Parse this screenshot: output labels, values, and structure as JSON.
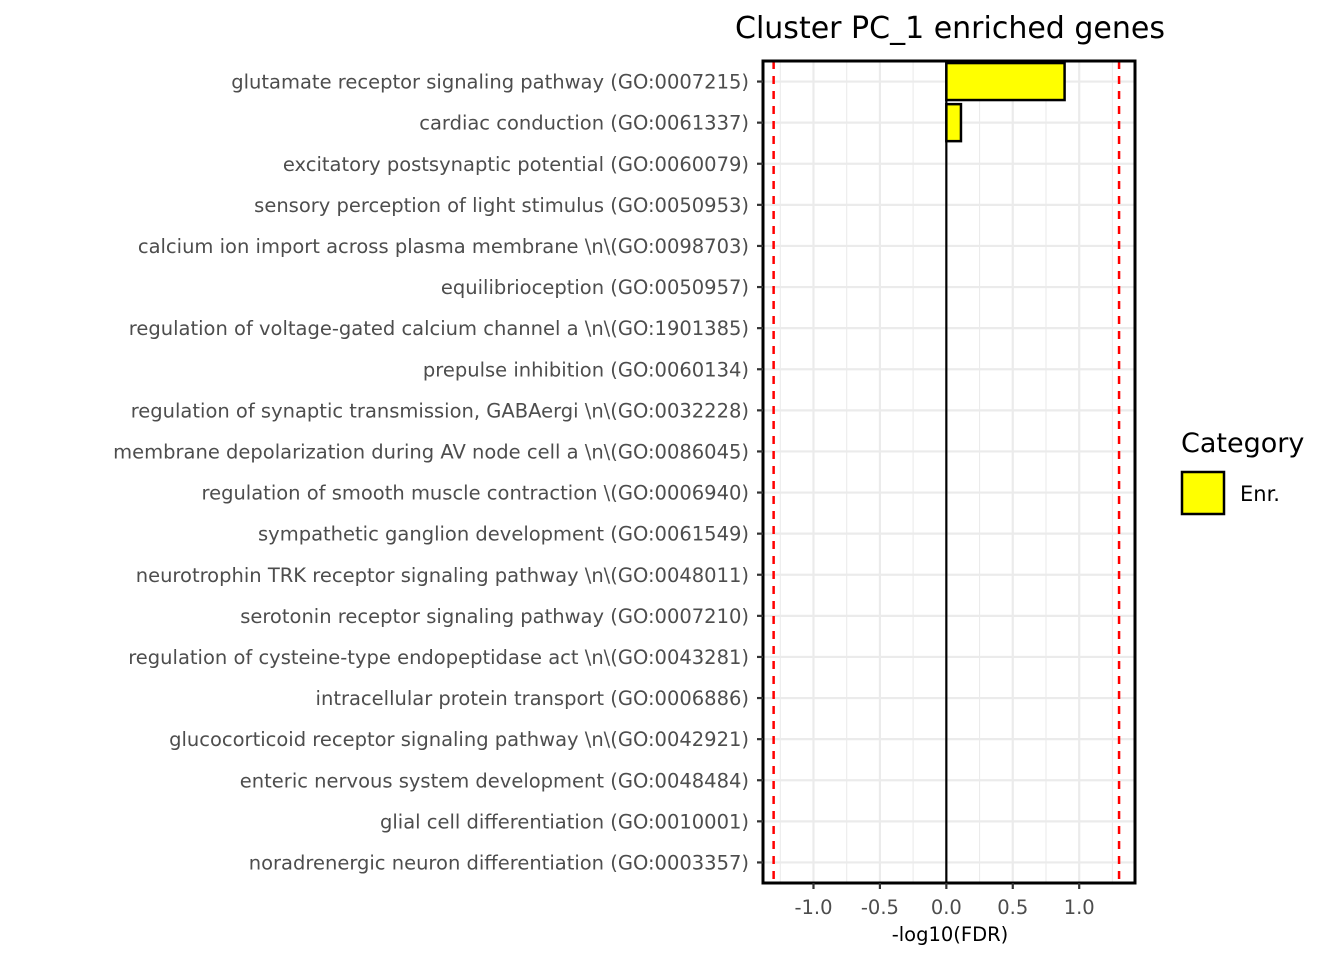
{
  "chart_data": {
    "type": "bar",
    "orientation": "horizontal",
    "title": "Cluster PC_1 enriched genes",
    "xlabel": "-log10(FDR)",
    "ylabel": "",
    "xlim": [
      -1.38,
      1.42
    ],
    "xticks": [
      -1.0,
      -0.5,
      0.0,
      0.5,
      1.0
    ],
    "xtick_labels": [
      "-1.0",
      "-0.5",
      "0.0",
      "0.5",
      "1.0"
    ],
    "categories": [
      "glutamate receptor signaling pathway (GO:0007215)",
      "cardiac conduction (GO:0061337)",
      "excitatory postsynaptic potential (GO:0060079)",
      "sensory perception of light stimulus (GO:0050953)",
      "calcium ion import across plasma membrane  \\n\\(GO:0098703)",
      "equilibrioception (GO:0050957)",
      "regulation of voltage-gated calcium channel a \\n\\(GO:1901385)",
      "prepulse inhibition (GO:0060134)",
      "regulation of synaptic transmission, GABAergi \\n\\(GO:0032228)",
      "membrane depolarization during AV node cell a \\n\\(GO:0086045)",
      "regulation of smooth muscle contraction  \\(GO:0006940)",
      "sympathetic ganglion development (GO:0061549)",
      "neurotrophin TRK receptor signaling pathway  \\n\\(GO:0048011)",
      "serotonin receptor signaling pathway (GO:0007210)",
      "regulation of cysteine-type endopeptidase act \\n\\(GO:0043281)",
      "intracellular protein transport (GO:0006886)",
      "glucocorticoid receptor signaling pathway  \\n\\(GO:0042921)",
      "enteric nervous system development (GO:0048484)",
      "glial cell differentiation (GO:0010001)",
      "noradrenergic neuron differentiation (GO:0003357)"
    ],
    "series": [
      {
        "name": "Enr.",
        "color": "#ffff00",
        "values": [
          0.89,
          0.11,
          0,
          0,
          0,
          0,
          0,
          0,
          0,
          0,
          0,
          0,
          0,
          0,
          0,
          0,
          0,
          0,
          0,
          0
        ]
      }
    ],
    "reference_lines": [
      {
        "x": -1.3,
        "color": "#ff0000",
        "style": "dashed"
      },
      {
        "x": 1.3,
        "color": "#ff0000",
        "style": "dashed"
      },
      {
        "x": 0,
        "color": "#000000",
        "style": "solid"
      }
    ],
    "grid": true,
    "legend": {
      "title": "Category",
      "position": "right",
      "items": [
        {
          "label": "Enr.",
          "color": "#ffff00"
        }
      ]
    }
  }
}
